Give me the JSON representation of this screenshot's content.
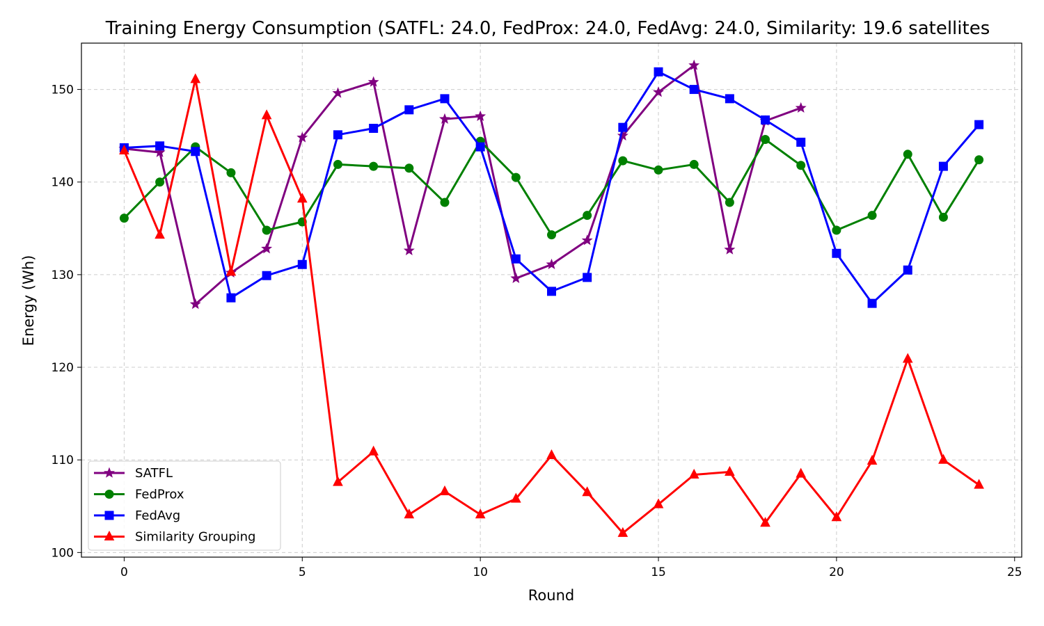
{
  "chart_data": {
    "type": "line",
    "title": "Training Energy Consumption (SATFL: 24.0, FedProx: 24.0, FedAvg: 24.0, Similarity: 19.6 satellites",
    "xlabel": "Round",
    "ylabel": "Energy (Wh)",
    "xlim": [
      -1.2,
      25.2
    ],
    "ylim": [
      99.5,
      155
    ],
    "xticks": [
      0,
      5,
      10,
      15,
      20,
      25
    ],
    "yticks": [
      100,
      110,
      120,
      130,
      140,
      150
    ],
    "grid": true,
    "legend_position": "lower-left",
    "series": [
      {
        "name": "SATFL",
        "color": "#800080",
        "marker": "star",
        "x": [
          0,
          1,
          2,
          3,
          4,
          5,
          6,
          7,
          8,
          9,
          10,
          11,
          12,
          13,
          14,
          15,
          16,
          17,
          18,
          19
        ],
        "y": [
          143.6,
          143.2,
          126.8,
          130.2,
          132.8,
          144.8,
          149.6,
          150.8,
          132.6,
          146.8,
          147.1,
          129.6,
          131.1,
          133.7,
          145.0,
          149.7,
          152.6,
          132.7,
          146.6,
          148.0
        ]
      },
      {
        "name": "FedProx",
        "color": "#008000",
        "marker": "circle",
        "x": [
          0,
          1,
          2,
          3,
          4,
          5,
          6,
          7,
          8,
          9,
          10,
          11,
          12,
          13,
          14,
          15,
          16,
          17,
          18,
          19,
          20,
          21,
          22,
          23,
          24
        ],
        "y": [
          136.1,
          140.0,
          143.8,
          141.0,
          134.8,
          135.7,
          141.9,
          141.7,
          141.5,
          137.8,
          144.4,
          140.5,
          134.3,
          136.4,
          142.3,
          141.3,
          141.9,
          137.8,
          144.6,
          141.8,
          134.8,
          136.4,
          143.0,
          136.2,
          142.4
        ]
      },
      {
        "name": "FedAvg",
        "color": "#0000ff",
        "marker": "square",
        "x": [
          0,
          1,
          2,
          3,
          4,
          5,
          6,
          7,
          8,
          9,
          10,
          11,
          12,
          13,
          14,
          15,
          16,
          17,
          18,
          19,
          20,
          21,
          22,
          23,
          24
        ],
        "y": [
          143.7,
          143.9,
          143.3,
          127.5,
          129.9,
          131.1,
          145.1,
          145.8,
          147.8,
          149.0,
          143.8,
          131.7,
          128.2,
          129.7,
          145.9,
          151.9,
          150.0,
          149.0,
          146.7,
          144.3,
          132.3,
          126.9,
          130.5,
          141.7,
          146.2
        ]
      },
      {
        "name": "Similarity Grouping",
        "color": "#ff0000",
        "marker": "triangle",
        "x": [
          0,
          1,
          2,
          3,
          4,
          5,
          6,
          7,
          8,
          9,
          10,
          11,
          12,
          13,
          14,
          15,
          16,
          17,
          18,
          19,
          20,
          21,
          22,
          23,
          24
        ],
        "y": [
          143.4,
          134.3,
          151.1,
          130.3,
          147.2,
          138.2,
          107.6,
          110.9,
          104.1,
          106.6,
          104.1,
          105.8,
          110.5,
          106.5,
          102.1,
          105.2,
          108.4,
          108.7,
          103.2,
          108.5,
          103.8,
          109.9,
          120.9,
          110.0,
          107.3
        ]
      }
    ]
  }
}
